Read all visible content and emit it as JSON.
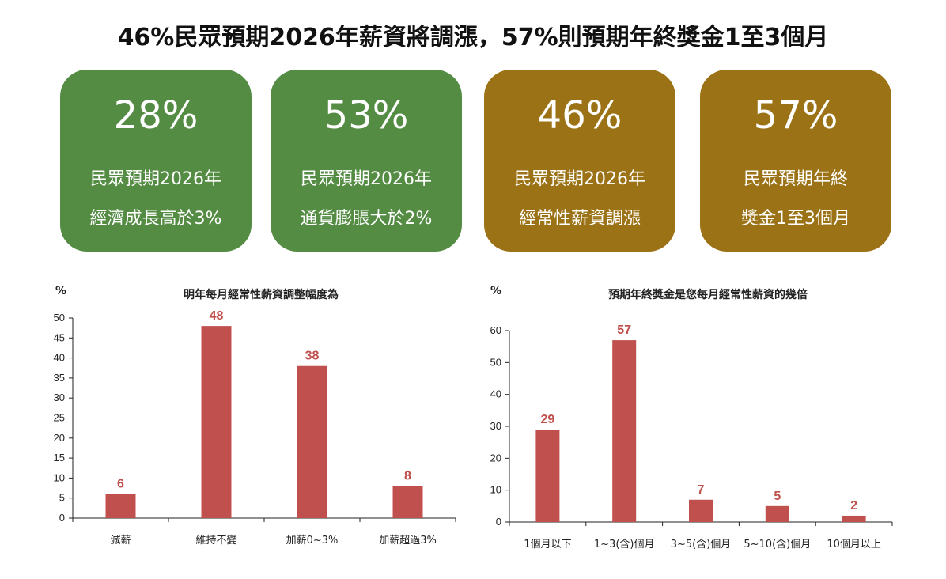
{
  "title": "46%民眾預期2026年薪資將調漲，57%則預期年終獎金1至3個月",
  "cards": [
    {
      "value": "28%",
      "line1": "民眾預期2026年",
      "line2": "經濟成長高於3%",
      "color": "#548c44"
    },
    {
      "value": "53%",
      "line1": "民眾預期2026年",
      "line2": "通貨膨脹大於2%",
      "color": "#548c44"
    },
    {
      "value": "46%",
      "line1": "民眾預期2026年",
      "line2": "經常性薪資調漲",
      "color": "#9b7316"
    },
    {
      "value": "57%",
      "line1": "民眾預期年終",
      "line2": "獎金1至3個月",
      "color": "#9b7316"
    }
  ],
  "chart_data": [
    {
      "type": "bar",
      "title": "明年每月經常性薪資調整幅度為",
      "ylabel": "%",
      "categories": [
        "減薪",
        "維持不變",
        "加薪0~3%",
        "加薪超過3%"
      ],
      "values": [
        6,
        48,
        38,
        8
      ],
      "ylim": [
        0,
        50
      ],
      "yticks": [
        0,
        5,
        10,
        15,
        20,
        25,
        30,
        35,
        40,
        45,
        50
      ],
      "bar_color": "#c0504d",
      "grid": false
    },
    {
      "type": "bar",
      "title": "預期年終獎金是您每月經常性薪資的幾倍",
      "ylabel": "%",
      "categories": [
        "1個月以下",
        "1~3(含)個月",
        "3~5(含)個月",
        "5~10(含)個月",
        "10個月以上"
      ],
      "values": [
        29,
        57,
        7,
        5,
        2
      ],
      "ylim": [
        0,
        60
      ],
      "yticks": [
        0,
        10,
        20,
        30,
        40,
        50,
        60
      ],
      "bar_color": "#c0504d",
      "grid": false
    }
  ]
}
